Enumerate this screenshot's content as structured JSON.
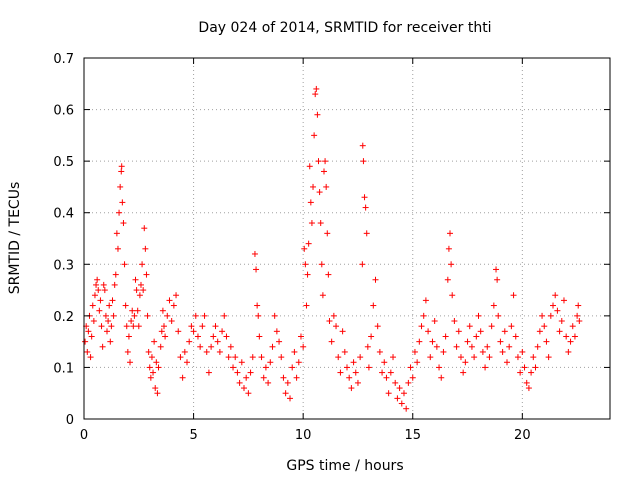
{
  "chart_data": {
    "type": "scatter",
    "title": "Day 024 of 2014, SRMTID for receiver thti",
    "xlabel": "GPS time / hours",
    "ylabel": "SRMTID / TECUs",
    "xlim": [
      0,
      24
    ],
    "ylim": [
      0,
      0.7
    ],
    "xticks": [
      0,
      5,
      10,
      15,
      20
    ],
    "xtick_labels": [
      "0",
      "5",
      "10",
      "15",
      "20"
    ],
    "yticks": [
      0,
      0.1,
      0.2,
      0.3,
      0.4,
      0.5,
      0.6,
      0.7
    ],
    "ytick_labels": [
      "0",
      "0.1",
      "0.2",
      "0.3",
      "0.4",
      "0.5",
      "0.6",
      "0.7"
    ],
    "grid": true,
    "marker": "+",
    "color": "#ff0000",
    "series": [
      {
        "name": "SRMTID",
        "points": [
          [
            0.05,
            0.15
          ],
          [
            0.1,
            0.18
          ],
          [
            0.15,
            0.13
          ],
          [
            0.2,
            0.17
          ],
          [
            0.25,
            0.2
          ],
          [
            0.3,
            0.12
          ],
          [
            0.35,
            0.16
          ],
          [
            0.4,
            0.22
          ],
          [
            0.45,
            0.19
          ],
          [
            0.5,
            0.24
          ],
          [
            0.55,
            0.26
          ],
          [
            0.6,
            0.27
          ],
          [
            0.65,
            0.25
          ],
          [
            0.7,
            0.21
          ],
          [
            0.75,
            0.23
          ],
          [
            0.8,
            0.18
          ],
          [
            0.85,
            0.14
          ],
          [
            0.9,
            0.26
          ],
          [
            0.95,
            0.25
          ],
          [
            1.0,
            0.2
          ],
          [
            1.05,
            0.17
          ],
          [
            1.1,
            0.19
          ],
          [
            1.15,
            0.22
          ],
          [
            1.2,
            0.15
          ],
          [
            1.25,
            0.18
          ],
          [
            1.3,
            0.23
          ],
          [
            1.35,
            0.2
          ],
          [
            1.4,
            0.26
          ],
          [
            1.45,
            0.28
          ],
          [
            1.5,
            0.36
          ],
          [
            1.55,
            0.33
          ],
          [
            1.6,
            0.4
          ],
          [
            1.65,
            0.45
          ],
          [
            1.7,
            0.48
          ],
          [
            1.72,
            0.49
          ],
          [
            1.75,
            0.42
          ],
          [
            1.8,
            0.38
          ],
          [
            1.85,
            0.3
          ],
          [
            1.9,
            0.22
          ],
          [
            1.95,
            0.18
          ],
          [
            2.0,
            0.13
          ],
          [
            2.05,
            0.16
          ],
          [
            2.1,
            0.11
          ],
          [
            2.15,
            0.19
          ],
          [
            2.2,
            0.21
          ],
          [
            2.25,
            0.18
          ],
          [
            2.3,
            0.2
          ],
          [
            2.35,
            0.27
          ],
          [
            2.4,
            0.25
          ],
          [
            2.45,
            0.21
          ],
          [
            2.5,
            0.18
          ],
          [
            2.55,
            0.24
          ],
          [
            2.6,
            0.26
          ],
          [
            2.65,
            0.3
          ],
          [
            2.7,
            0.25
          ],
          [
            2.75,
            0.37
          ],
          [
            2.8,
            0.33
          ],
          [
            2.85,
            0.28
          ],
          [
            2.9,
            0.2
          ],
          [
            2.95,
            0.13
          ],
          [
            3.0,
            0.1
          ],
          [
            3.05,
            0.08
          ],
          [
            3.1,
            0.12
          ],
          [
            3.15,
            0.09
          ],
          [
            3.2,
            0.15
          ],
          [
            3.25,
            0.06
          ],
          [
            3.3,
            0.11
          ],
          [
            3.35,
            0.05
          ],
          [
            3.4,
            0.1
          ],
          [
            3.5,
            0.14
          ],
          [
            3.55,
            0.17
          ],
          [
            3.6,
            0.21
          ],
          [
            3.65,
            0.18
          ],
          [
            3.7,
            0.16
          ],
          [
            3.8,
            0.2
          ],
          [
            3.9,
            0.23
          ],
          [
            4.0,
            0.19
          ],
          [
            4.1,
            0.22
          ],
          [
            4.2,
            0.24
          ],
          [
            4.3,
            0.17
          ],
          [
            4.4,
            0.12
          ],
          [
            4.5,
            0.08
          ],
          [
            4.6,
            0.13
          ],
          [
            4.7,
            0.11
          ],
          [
            4.8,
            0.15
          ],
          [
            4.9,
            0.18
          ],
          [
            5.0,
            0.17
          ],
          [
            5.1,
            0.2
          ],
          [
            5.2,
            0.16
          ],
          [
            5.3,
            0.14
          ],
          [
            5.4,
            0.18
          ],
          [
            5.5,
            0.2
          ],
          [
            5.6,
            0.13
          ],
          [
            5.7,
            0.09
          ],
          [
            5.8,
            0.14
          ],
          [
            5.9,
            0.16
          ],
          [
            6.0,
            0.18
          ],
          [
            6.1,
            0.15
          ],
          [
            6.2,
            0.13
          ],
          [
            6.3,
            0.17
          ],
          [
            6.4,
            0.2
          ],
          [
            6.5,
            0.16
          ],
          [
            6.6,
            0.12
          ],
          [
            6.7,
            0.14
          ],
          [
            6.8,
            0.1
          ],
          [
            6.9,
            0.12
          ],
          [
            7.0,
            0.09
          ],
          [
            7.1,
            0.07
          ],
          [
            7.2,
            0.11
          ],
          [
            7.3,
            0.06
          ],
          [
            7.4,
            0.08
          ],
          [
            7.5,
            0.05
          ],
          [
            7.6,
            0.09
          ],
          [
            7.7,
            0.12
          ],
          [
            7.8,
            0.32
          ],
          [
            7.85,
            0.29
          ],
          [
            7.9,
            0.22
          ],
          [
            7.95,
            0.2
          ],
          [
            8.0,
            0.16
          ],
          [
            8.1,
            0.12
          ],
          [
            8.2,
            0.08
          ],
          [
            8.3,
            0.1
          ],
          [
            8.4,
            0.07
          ],
          [
            8.5,
            0.11
          ],
          [
            8.6,
            0.14
          ],
          [
            8.7,
            0.2
          ],
          [
            8.8,
            0.17
          ],
          [
            8.9,
            0.15
          ],
          [
            9.0,
            0.12
          ],
          [
            9.1,
            0.08
          ],
          [
            9.2,
            0.05
          ],
          [
            9.3,
            0.07
          ],
          [
            9.4,
            0.04
          ],
          [
            9.5,
            0.1
          ],
          [
            9.6,
            0.13
          ],
          [
            9.7,
            0.08
          ],
          [
            9.8,
            0.11
          ],
          [
            9.9,
            0.16
          ],
          [
            10.0,
            0.14
          ],
          [
            10.05,
            0.33
          ],
          [
            10.1,
            0.3
          ],
          [
            10.15,
            0.22
          ],
          [
            10.2,
            0.28
          ],
          [
            10.25,
            0.34
          ],
          [
            10.3,
            0.49
          ],
          [
            10.35,
            0.42
          ],
          [
            10.4,
            0.38
          ],
          [
            10.45,
            0.45
          ],
          [
            10.5,
            0.55
          ],
          [
            10.55,
            0.63
          ],
          [
            10.6,
            0.64
          ],
          [
            10.65,
            0.59
          ],
          [
            10.7,
            0.5
          ],
          [
            10.75,
            0.44
          ],
          [
            10.8,
            0.38
          ],
          [
            10.85,
            0.3
          ],
          [
            10.9,
            0.24
          ],
          [
            10.95,
            0.48
          ],
          [
            11.0,
            0.5
          ],
          [
            11.05,
            0.45
          ],
          [
            11.1,
            0.36
          ],
          [
            11.15,
            0.28
          ],
          [
            11.2,
            0.19
          ],
          [
            11.3,
            0.15
          ],
          [
            11.4,
            0.2
          ],
          [
            11.5,
            0.18
          ],
          [
            11.6,
            0.12
          ],
          [
            11.7,
            0.09
          ],
          [
            11.8,
            0.17
          ],
          [
            11.9,
            0.13
          ],
          [
            12.0,
            0.1
          ],
          [
            12.1,
            0.08
          ],
          [
            12.2,
            0.06
          ],
          [
            12.3,
            0.11
          ],
          [
            12.4,
            0.09
          ],
          [
            12.5,
            0.07
          ],
          [
            12.6,
            0.12
          ],
          [
            12.7,
            0.3
          ],
          [
            12.72,
            0.53
          ],
          [
            12.75,
            0.5
          ],
          [
            12.8,
            0.43
          ],
          [
            12.85,
            0.41
          ],
          [
            12.9,
            0.36
          ],
          [
            12.95,
            0.14
          ],
          [
            13.0,
            0.1
          ],
          [
            13.1,
            0.16
          ],
          [
            13.2,
            0.22
          ],
          [
            13.3,
            0.27
          ],
          [
            13.4,
            0.18
          ],
          [
            13.5,
            0.13
          ],
          [
            13.6,
            0.09
          ],
          [
            13.7,
            0.11
          ],
          [
            13.8,
            0.08
          ],
          [
            13.9,
            0.05
          ],
          [
            14.0,
            0.09
          ],
          [
            14.1,
            0.12
          ],
          [
            14.2,
            0.07
          ],
          [
            14.3,
            0.04
          ],
          [
            14.4,
            0.06
          ],
          [
            14.5,
            0.03
          ],
          [
            14.6,
            0.05
          ],
          [
            14.7,
            0.02
          ],
          [
            14.8,
            0.07
          ],
          [
            14.9,
            0.1
          ],
          [
            15.0,
            0.08
          ],
          [
            15.1,
            0.13
          ],
          [
            15.2,
            0.11
          ],
          [
            15.3,
            0.15
          ],
          [
            15.4,
            0.18
          ],
          [
            15.5,
            0.2
          ],
          [
            15.6,
            0.23
          ],
          [
            15.7,
            0.17
          ],
          [
            15.8,
            0.12
          ],
          [
            15.9,
            0.15
          ],
          [
            16.0,
            0.19
          ],
          [
            16.1,
            0.14
          ],
          [
            16.2,
            0.1
          ],
          [
            16.3,
            0.08
          ],
          [
            16.4,
            0.13
          ],
          [
            16.5,
            0.16
          ],
          [
            16.6,
            0.27
          ],
          [
            16.65,
            0.33
          ],
          [
            16.7,
            0.36
          ],
          [
            16.75,
            0.3
          ],
          [
            16.8,
            0.24
          ],
          [
            16.9,
            0.19
          ],
          [
            17.0,
            0.14
          ],
          [
            17.1,
            0.17
          ],
          [
            17.2,
            0.12
          ],
          [
            17.3,
            0.09
          ],
          [
            17.4,
            0.11
          ],
          [
            17.5,
            0.15
          ],
          [
            17.6,
            0.18
          ],
          [
            17.7,
            0.14
          ],
          [
            17.8,
            0.12
          ],
          [
            17.9,
            0.16
          ],
          [
            18.0,
            0.2
          ],
          [
            18.1,
            0.17
          ],
          [
            18.2,
            0.13
          ],
          [
            18.3,
            0.1
          ],
          [
            18.4,
            0.14
          ],
          [
            18.5,
            0.12
          ],
          [
            18.6,
            0.18
          ],
          [
            18.7,
            0.22
          ],
          [
            18.8,
            0.29
          ],
          [
            18.85,
            0.27
          ],
          [
            18.9,
            0.2
          ],
          [
            19.0,
            0.15
          ],
          [
            19.1,
            0.13
          ],
          [
            19.2,
            0.17
          ],
          [
            19.3,
            0.11
          ],
          [
            19.4,
            0.14
          ],
          [
            19.5,
            0.18
          ],
          [
            19.6,
            0.24
          ],
          [
            19.7,
            0.16
          ],
          [
            19.8,
            0.12
          ],
          [
            19.9,
            0.09
          ],
          [
            20.0,
            0.13
          ],
          [
            20.1,
            0.1
          ],
          [
            20.2,
            0.07
          ],
          [
            20.3,
            0.06
          ],
          [
            20.4,
            0.09
          ],
          [
            20.5,
            0.12
          ],
          [
            20.6,
            0.1
          ],
          [
            20.7,
            0.14
          ],
          [
            20.8,
            0.17
          ],
          [
            20.9,
            0.2
          ],
          [
            21.0,
            0.18
          ],
          [
            21.1,
            0.15
          ],
          [
            21.2,
            0.12
          ],
          [
            21.3,
            0.2
          ],
          [
            21.4,
            0.22
          ],
          [
            21.5,
            0.24
          ],
          [
            21.6,
            0.21
          ],
          [
            21.7,
            0.17
          ],
          [
            21.8,
            0.19
          ],
          [
            21.9,
            0.23
          ],
          [
            22.0,
            0.16
          ],
          [
            22.1,
            0.13
          ],
          [
            22.2,
            0.15
          ],
          [
            22.3,
            0.18
          ],
          [
            22.4,
            0.16
          ],
          [
            22.5,
            0.2
          ],
          [
            22.55,
            0.22
          ],
          [
            22.6,
            0.19
          ]
        ]
      }
    ]
  }
}
